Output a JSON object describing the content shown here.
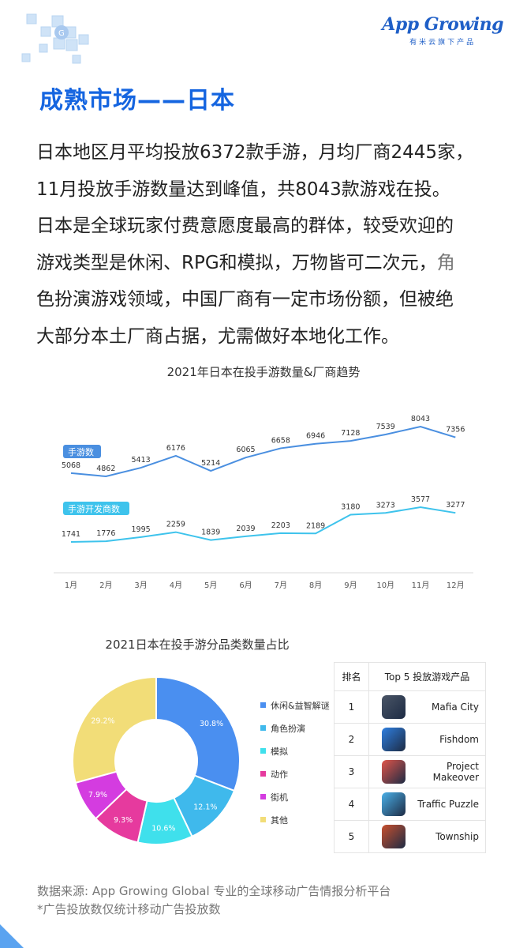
{
  "header": {
    "logo_text": "App Growing",
    "logo_subtitle": "有米云旗下产品",
    "page_title": "成熟市场——日本"
  },
  "intro": {
    "lines": [
      "日本地区月平均投放6372款手游，月均厂商2445家，",
      "11月投放手游数量达到峰值，共8043款游戏在投。",
      "日本是全球玩家付费意愿度最高的群体，较受欢迎的",
      "游戏类型是休闲、RPG和模拟，万物皆可二次元，",
      "色扮演游戏领域，中国厂商有一定市场份额，但被绝",
      "大部分本土厂商占据，尤需做好本地化工作。"
    ],
    "line4_tail": "角"
  },
  "chart_data": [
    {
      "type": "line",
      "title": "2021年日本在投手游数量&厂商趋势",
      "categories": [
        "1月",
        "2月",
        "3月",
        "4月",
        "5月",
        "6月",
        "7月",
        "8月",
        "9月",
        "10月",
        "11月",
        "12月"
      ],
      "series": [
        {
          "name": "手游数",
          "color": "#4a8fe0",
          "values": [
            5068,
            4862,
            5413,
            6176,
            5214,
            6065,
            6658,
            6946,
            7128,
            7539,
            8043,
            7356
          ]
        },
        {
          "name": "手游开发商数",
          "color": "#3ec3ec",
          "values": [
            1741,
            1776,
            1995,
            2259,
            1839,
            2039,
            2203,
            2189,
            3180,
            3273,
            3577,
            3277
          ]
        }
      ]
    },
    {
      "type": "pie",
      "title": "2021日本在投手游分品类数量占比",
      "donut": true,
      "slices": [
        {
          "label": "休闲&益智解谜",
          "value": 30.8,
          "display": "30.8%",
          "color": "#4a8ff0"
        },
        {
          "label": "角色扮演",
          "value": 12.1,
          "display": "12.1%",
          "color": "#3fb9ec"
        },
        {
          "label": "模拟",
          "value": 10.6,
          "display": "10.6%",
          "color": "#3fe0ec"
        },
        {
          "label": "动作",
          "value": 9.3,
          "display": "9.3%",
          "color": "#e63a9e"
        },
        {
          "label": "街机",
          "value": 7.9,
          "display": "7.9%",
          "color": "#d43ce0"
        },
        {
          "label": "其他",
          "value": 29.2,
          "display": "29.2%",
          "color": "#f2dd78"
        }
      ]
    }
  ],
  "top5": {
    "header_rank": "排名",
    "header_product": "Top 5 投放游戏产品",
    "rows": [
      {
        "rank": "1",
        "name": "Mafia City",
        "icon": "mafia-city-icon",
        "color": "#4a5566"
      },
      {
        "rank": "2",
        "name": "Fishdom",
        "icon": "fishdom-icon",
        "color": "#2f7fe0"
      },
      {
        "rank": "3",
        "name": "Project Makeover",
        "icon": "project-makeover-icon",
        "color": "#e0554a"
      },
      {
        "rank": "4",
        "name": "Traffic Puzzle",
        "icon": "traffic-puzzle-icon",
        "color": "#4ab0e8"
      },
      {
        "rank": "5",
        "name": "Township",
        "icon": "township-icon",
        "color": "#c8502e"
      }
    ]
  },
  "footer": {
    "source": "数据来源: App Growing Global 专业的全球移动广告情报分析平台",
    "note": "*广告投放数仅统计移动广告投放数"
  }
}
